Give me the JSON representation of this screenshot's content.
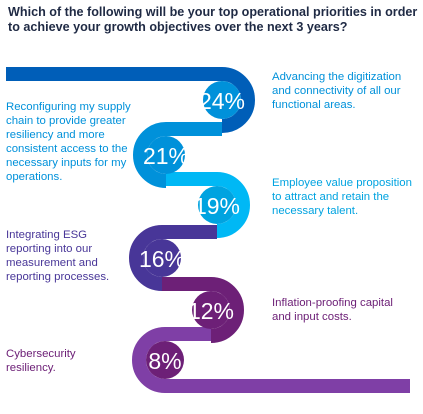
{
  "title": "Which of the following will be your top operational priorities in order to achieve your growth objectives over the next 3 years?",
  "chart_data": {
    "type": "bar",
    "categories": [
      "Advancing the digitization and connectivity of all our functional areas.",
      "Reconfiguring my supply chain to provide greater resiliency and more consistent access to the necessary inputs for my operations.",
      "Employee value proposition to attract and retain the necessary talent.",
      "Integrating ESG reporting into our measurement and reporting processes.",
      "Inflation-proofing capital and input costs.",
      "Cybersecurity resiliency."
    ],
    "values": [
      24,
      21,
      19,
      16,
      12,
      8
    ],
    "value_labels": [
      "24%",
      "21%",
      "19%",
      "16%",
      "12%",
      "8%"
    ],
    "unit": "%",
    "colors": [
      "#0091da",
      "#0091da",
      "#00a3e0",
      "#483698",
      "#6d2077",
      "#6d2077"
    ],
    "ribbon_colors": [
      "#005eb8",
      "#0091da",
      "#00b8f5",
      "#483698",
      "#6d2077",
      "#7f3fa6"
    ]
  }
}
